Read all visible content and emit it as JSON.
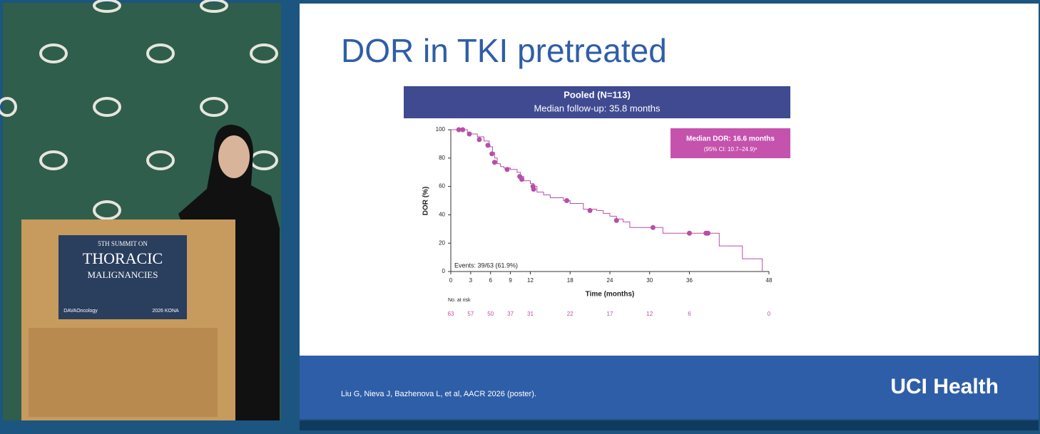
{
  "chart_data": {
    "type": "step",
    "title": "DOR in TKI pretreated",
    "header": [
      "Pooled (N=113)",
      "Median follow-up: 35.8 months"
    ],
    "annotation": [
      "Median DOR: 16.6 months",
      "(95% CI: 10.7–24.9)ᵃ"
    ],
    "events_label": "Events: 39/63 (61.9%)",
    "xlabel": "Time (months)",
    "ylabel": "DOR (%)",
    "xlim": [
      0,
      48
    ],
    "ylim": [
      0,
      100
    ],
    "xticks": [
      0,
      3,
      6,
      9,
      12,
      18,
      24,
      30,
      36,
      48
    ],
    "yticks": [
      0,
      20,
      40,
      60,
      80,
      100
    ],
    "series": [
      {
        "color": "#b84fa6",
        "x": [
          0,
          2.5,
          3,
          4,
          5,
          5.8,
          6.3,
          6.6,
          7,
          7.5,
          8,
          9,
          10,
          10.5,
          11,
          12,
          12.5,
          13,
          14,
          15,
          17,
          18,
          20,
          22,
          23,
          24,
          25,
          26,
          27,
          32,
          40.5,
          44,
          47
        ],
        "values": [
          100,
          98,
          97,
          95,
          92,
          88,
          84,
          80,
          76,
          74,
          73,
          72,
          70,
          67,
          64,
          62,
          60,
          56,
          54,
          52,
          50,
          48,
          44,
          43,
          41,
          39,
          37,
          35,
          31,
          27,
          18,
          9,
          0
        ]
      }
    ],
    "censored": {
      "color": "#b84fa6",
      "x": [
        1.2,
        1.8,
        2.8,
        4.3,
        5.6,
        6.2,
        6.6,
        8.5,
        10.4,
        10.7,
        12.4,
        12.5,
        17.5,
        21,
        25,
        30.5,
        36,
        38.5,
        38.8
      ],
      "values": [
        100,
        100,
        97,
        93,
        89,
        83,
        77,
        72,
        67,
        65,
        60,
        58,
        50,
        43,
        36,
        31,
        27,
        27,
        27
      ]
    },
    "at_risk_label": "No. at risk",
    "at_risk": {
      "x": [
        0,
        3,
        6,
        9,
        12,
        18,
        24,
        30,
        36,
        48
      ],
      "values": [
        63,
        57,
        50,
        37,
        31,
        22,
        17,
        12,
        6,
        0
      ],
      "color": "#b84fa6"
    }
  },
  "footer": {
    "citation": "Liu G, Nieva J, Bazhenova L, et al, AACR 2026 (poster).",
    "logo": "UCI Health"
  },
  "podium": {
    "line1": "5TH SUMMIT ON",
    "line2": "THORACIC",
    "line3": "MALIGNANCIES",
    "sponsor": "DAVAOncology",
    "badge": "2026 KONA"
  }
}
